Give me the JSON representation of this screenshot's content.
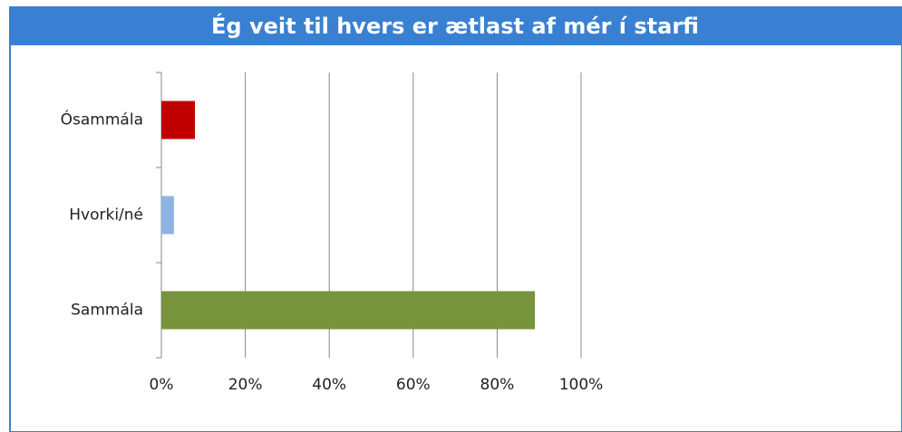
{
  "chart_data": {
    "type": "bar",
    "orientation": "horizontal",
    "title": "Ég veit til hvers er ætlast af mér í starfi",
    "categories": [
      "Ósammála",
      "Hvorki/né",
      "Sammála"
    ],
    "values": [
      8,
      3,
      89
    ],
    "colors": [
      "#c00000",
      "#8eb4e3",
      "#77933c"
    ],
    "xlim": [
      0,
      100
    ],
    "xticks": [
      {
        "value": 0,
        "label": "0%"
      },
      {
        "value": 20,
        "label": "20%"
      },
      {
        "value": 40,
        "label": "40%"
      },
      {
        "value": 60,
        "label": "60%"
      },
      {
        "value": 80,
        "label": "80%"
      },
      {
        "value": 100,
        "label": "100%"
      }
    ],
    "grid": true
  }
}
